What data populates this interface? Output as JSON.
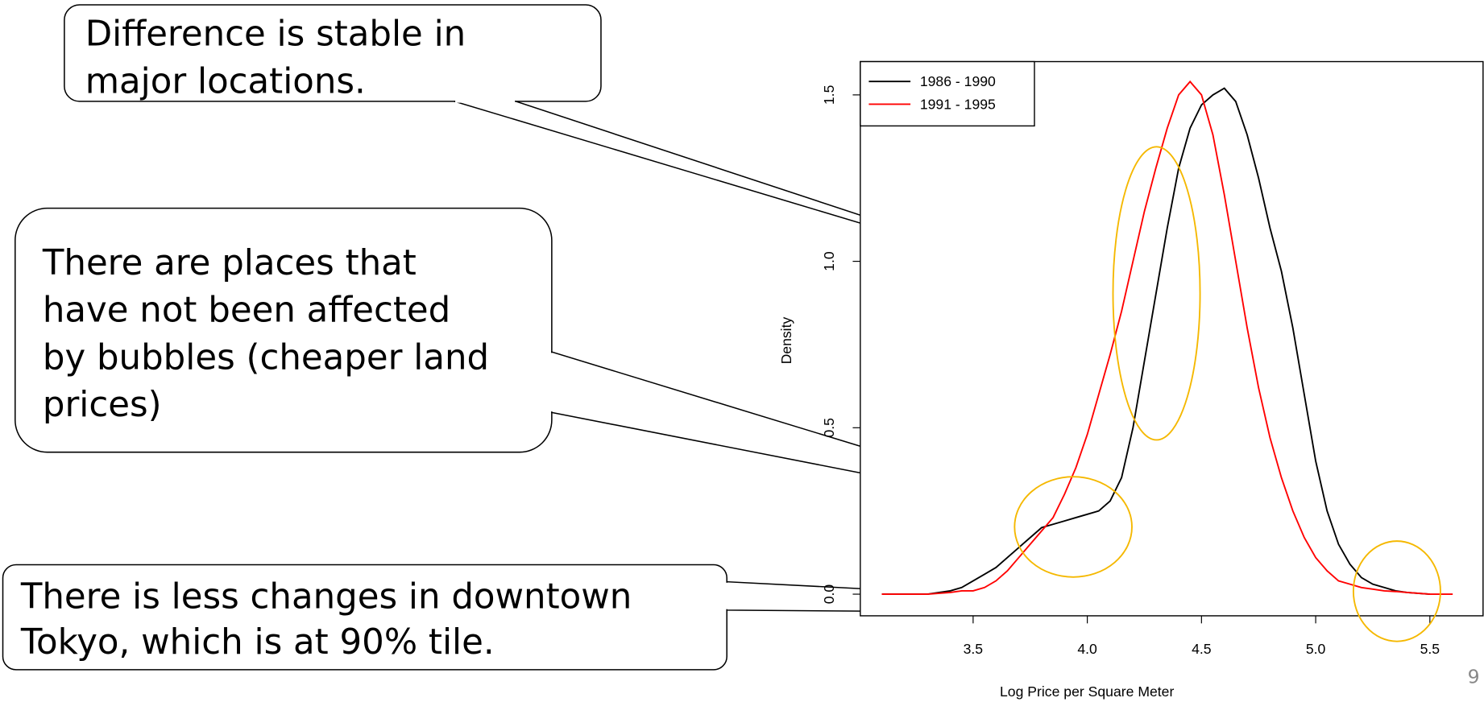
{
  "chart_data": {
    "type": "line",
    "x_label": "Log Price per Square Meter",
    "y_label": "Density",
    "x": [
      3.1,
      3.2,
      3.3,
      3.4,
      3.45,
      3.5,
      3.55,
      3.6,
      3.65,
      3.7,
      3.75,
      3.8,
      3.85,
      3.9,
      3.95,
      4.0,
      4.05,
      4.1,
      4.15,
      4.2,
      4.25,
      4.3,
      4.35,
      4.4,
      4.45,
      4.5,
      4.55,
      4.6,
      4.65,
      4.7,
      4.75,
      4.8,
      4.85,
      4.9,
      4.95,
      5.0,
      5.05,
      5.1,
      5.15,
      5.2,
      5.25,
      5.3,
      5.35,
      5.4,
      5.5,
      5.6
    ],
    "series": [
      {
        "name": "1986 - 1990",
        "color": "#000000",
        "values": [
          0,
          0,
          0,
          0.01,
          0.02,
          0.04,
          0.06,
          0.08,
          0.11,
          0.14,
          0.17,
          0.2,
          0.21,
          0.22,
          0.23,
          0.24,
          0.25,
          0.28,
          0.35,
          0.5,
          0.7,
          0.9,
          1.1,
          1.28,
          1.4,
          1.47,
          1.5,
          1.52,
          1.48,
          1.38,
          1.25,
          1.1,
          0.97,
          0.8,
          0.6,
          0.4,
          0.25,
          0.15,
          0.09,
          0.05,
          0.03,
          0.02,
          0.01,
          0.005,
          0,
          null
        ]
      },
      {
        "name": "1991 - 1995",
        "color": "#ff0000",
        "values": [
          0,
          0,
          0,
          0.005,
          0.01,
          0.01,
          0.02,
          0.04,
          0.07,
          0.11,
          0.15,
          0.19,
          0.23,
          0.3,
          0.38,
          0.48,
          0.6,
          0.72,
          0.85,
          1.0,
          1.15,
          1.28,
          1.4,
          1.5,
          1.54,
          1.5,
          1.38,
          1.2,
          1.0,
          0.8,
          0.62,
          0.47,
          0.35,
          0.25,
          0.17,
          0.11,
          0.07,
          0.04,
          0.03,
          0.02,
          0.015,
          0.01,
          0.008,
          0.005,
          0,
          0
        ]
      }
    ],
    "xlim": [
      3.006,
      5.737
    ],
    "ylim": [
      -0.065,
      1.6
    ],
    "xticks": [
      3.5,
      {
        "value": 4,
        "label": "4.0"
      },
      4.5,
      {
        "value": 5,
        "label": "5.0"
      },
      5.5
    ],
    "yticks": [
      {
        "value": 0,
        "label": "0.0"
      },
      0.5,
      {
        "value": 1,
        "label": "1.0"
      },
      1.5
    ],
    "legend": "top-left",
    "grid": false
  },
  "callouts": [
    {
      "lines": [
        "Difference is stable in",
        "major locations."
      ]
    },
    {
      "lines": [
        "There are places that",
        "have not been affected",
        "by bubbles (cheaper land",
        "prices)"
      ]
    },
    {
      "lines": [
        "There is less changes in downtown",
        "Tokyo, which is at 90% tile."
      ]
    }
  ],
  "page_number": 9
}
